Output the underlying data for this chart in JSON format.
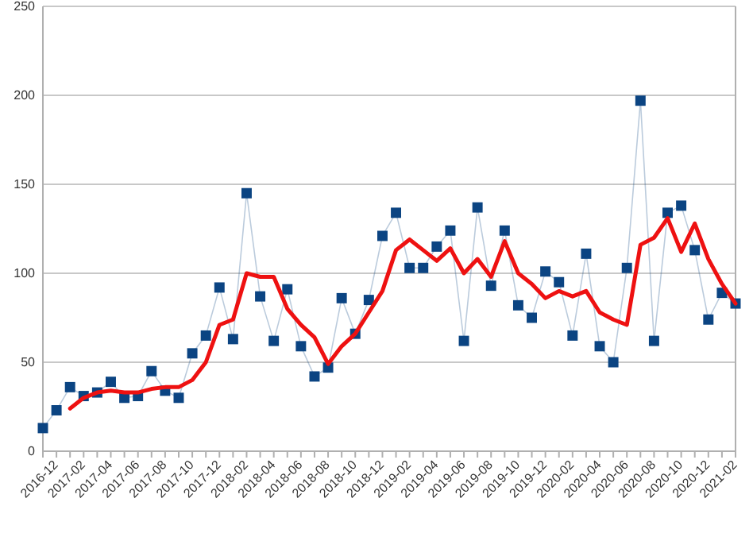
{
  "chart_data": {
    "type": "line",
    "categories": [
      "2016-12",
      null,
      "2017-02",
      null,
      "2017-04",
      null,
      "2017-06",
      null,
      "2017-08",
      null,
      "2017-10",
      null,
      "2017-12",
      null,
      "2018-02",
      null,
      "2018-04",
      null,
      "2018-06",
      null,
      "2018-08",
      null,
      "2018-10",
      null,
      "2018-12",
      null,
      "2019-02",
      null,
      "2019-04",
      null,
      "2019-06",
      null,
      "2019-08",
      null,
      "2019-10",
      null,
      "2019-12",
      null,
      "2020-02",
      null,
      "2020-04",
      null,
      "2020-06",
      null,
      "2020-08",
      null,
      "2020-10",
      null,
      "2020-12",
      null,
      "2021-02",
      null
    ],
    "series": [
      {
        "color": "#0b4482",
        "marker": "square",
        "values": [
          13,
          23,
          36,
          31,
          33,
          39,
          30,
          31,
          45,
          34,
          30,
          55,
          65,
          92,
          63,
          145,
          87,
          62,
          91,
          59,
          42,
          47,
          86,
          66,
          85,
          121,
          134,
          103,
          103,
          115,
          124,
          62,
          137,
          93,
          124,
          82,
          75,
          101,
          95,
          65,
          111,
          59,
          50,
          103,
          197,
          62,
          134,
          138,
          113,
          74,
          89,
          83
        ]
      },
      {
        "color": "#ee1111",
        "marker": "none",
        "values": [
          null,
          null,
          24,
          30,
          33,
          34,
          33,
          33,
          35,
          36,
          36,
          40,
          50,
          71,
          74,
          100,
          98,
          98,
          80,
          71,
          64,
          49,
          59,
          66,
          78,
          90,
          113,
          119,
          113,
          107,
          114,
          100,
          108,
          98,
          118,
          100,
          94,
          86,
          90,
          87,
          90,
          78,
          74,
          71,
          116,
          120,
          131,
          112,
          128,
          108,
          94,
          83
        ]
      }
    ],
    "ylim": [
      0,
      250
    ],
    "yticks": [
      0,
      50,
      100,
      150,
      200,
      250
    ],
    "grid": "y"
  }
}
